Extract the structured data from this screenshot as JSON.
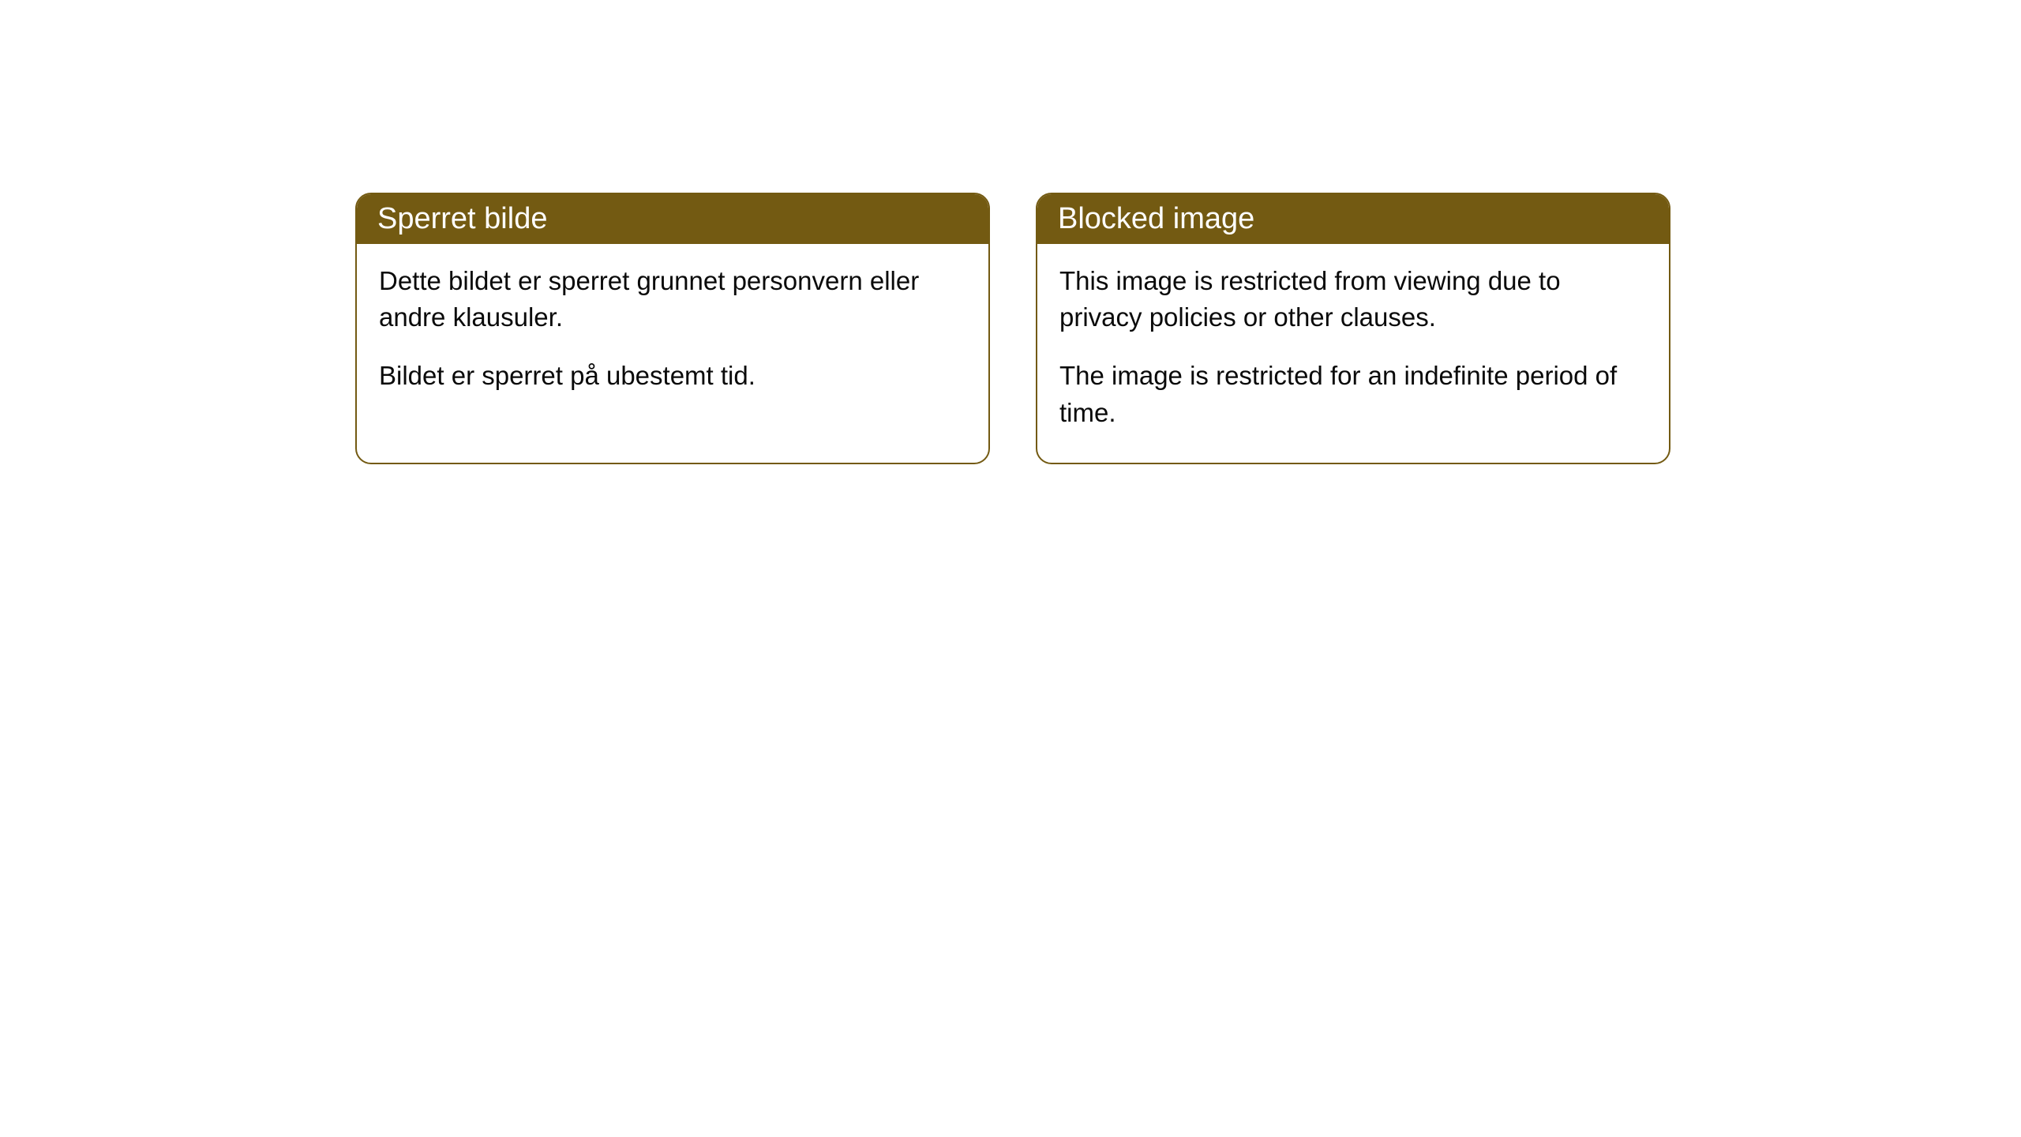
{
  "cards": [
    {
      "title": "Sperret bilde",
      "paragraph1": "Dette bildet er sperret grunnet personvern eller andre klausuler.",
      "paragraph2": "Bildet er sperret på ubestemt tid."
    },
    {
      "title": "Blocked image",
      "paragraph1": "This image is restricted from viewing due to privacy policies or other clauses.",
      "paragraph2": "The image is restricted for an indefinite period of time."
    }
  ],
  "styling": {
    "header_bg_color": "#735a12",
    "header_text_color": "#ffffff",
    "border_color": "#735a12",
    "body_bg_color": "#ffffff",
    "body_text_color": "#0a0a0a",
    "border_radius": 20,
    "title_fontsize": 38,
    "body_fontsize": 33
  }
}
